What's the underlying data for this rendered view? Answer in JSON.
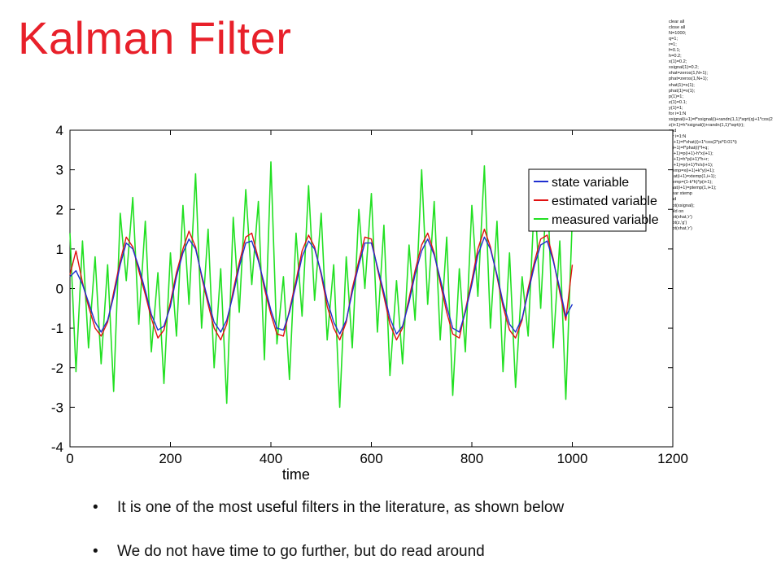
{
  "slide": {
    "title": "Kalman Filter",
    "bullets": [
      "It is one of the most useful filters in the literature, as shown below",
      "We do not have time to go further, but do read around"
    ],
    "code_lines": [
      "clear all",
      "close all",
      "N=1000;",
      "q=1;",
      "r=1;",
      "f=0.1;",
      "h=0.2;",
      "x(1)=0.2;",
      "xsignal(1)=0.2;",
      "xhat=zeros(1,N+1);",
      "phat=zeros(1,N+1);",
      "xhat(1)=x(1);",
      "phat(1)=x(1);",
      "p(1)=1;",
      "z(1)=0.1;",
      "y(1)=1;",
      "for i=1:N",
      "xsignal(i+1)=f*xsignal(i)+randn(1,1)*sqrt(q)+1*cos(2",
      "z(i+1)=h*xsignal(i)+randn(1,1)*sqrt(r);",
      "end",
      "for i=1:N",
      "x(i+1)=f*xhat(i)+1*cos(2*pi*0.01*i)",
      "p(i+1)=f*phat(i)*f+q;",
      "y(i+1)=p(i+1)-h*x(i+1);",
      "s(i+1)=h*p(i+1)*h+r;",
      "k(i+1)=p(i+1)*h/s(i+1);",
      "xtemp=x(i+1)+k*y(i+1);",
      "xhat(i+1)=xtemp(1,i+1);",
      "ptemp=(1-k*h)*p(i+1);",
      "phat(i+1)=ptemp(1,i+1);",
      "clear xtemp",
      "end",
      "plot(xsignal);",
      "hold on",
      "plot(xhat,'r')",
      "plot(z,'g')",
      "plot(xhat,'r')"
    ]
  },
  "colors": {
    "title": "#e8202a",
    "state": "#1f2fd0",
    "estimated": "#e01010",
    "measured": "#22e022"
  },
  "chart_data": {
    "type": "line",
    "xlabel": "time",
    "ylabel": "",
    "xlim": [
      0,
      1200
    ],
    "ylim": [
      -4,
      4
    ],
    "xticks": [
      0,
      200,
      400,
      600,
      800,
      1000,
      1200
    ],
    "yticks": [
      -4,
      -3,
      -2,
      -1,
      0,
      1,
      2,
      3,
      4
    ],
    "grid": false,
    "legend_position": "top-right",
    "x": [
      0,
      12,
      25,
      37,
      50,
      62,
      75,
      87,
      100,
      112,
      125,
      137,
      150,
      162,
      175,
      187,
      200,
      212,
      225,
      237,
      250,
      262,
      275,
      287,
      300,
      312,
      325,
      337,
      350,
      362,
      375,
      387,
      400,
      412,
      425,
      437,
      450,
      462,
      475,
      487,
      500,
      512,
      525,
      537,
      550,
      562,
      575,
      587,
      600,
      612,
      625,
      637,
      650,
      662,
      675,
      687,
      700,
      712,
      725,
      737,
      750,
      762,
      775,
      787,
      800,
      812,
      825,
      837,
      850,
      862,
      875,
      887,
      900,
      912,
      925,
      937,
      950,
      962,
      975,
      987,
      1000
    ],
    "series": [
      {
        "name": "state variable",
        "color": "#1f2fd0",
        "values": [
          0.3,
          0.45,
          0.1,
          -0.35,
          -0.85,
          -1.1,
          -0.8,
          -0.2,
          0.6,
          1.15,
          1.0,
          0.55,
          -0.05,
          -0.65,
          -1.05,
          -0.95,
          -0.45,
          0.3,
          0.9,
          1.25,
          1.0,
          0.35,
          -0.3,
          -0.85,
          -1.1,
          -0.8,
          -0.15,
          0.55,
          1.15,
          1.2,
          0.7,
          0.1,
          -0.55,
          -1.0,
          -1.05,
          -0.6,
          0.1,
          0.8,
          1.2,
          1.0,
          0.4,
          -0.3,
          -0.85,
          -1.15,
          -0.8,
          -0.1,
          0.6,
          1.15,
          1.15,
          0.55,
          -0.1,
          -0.75,
          -1.15,
          -0.95,
          -0.35,
          0.35,
          0.95,
          1.25,
          0.85,
          0.25,
          -0.45,
          -1.0,
          -1.1,
          -0.6,
          0.1,
          0.85,
          1.3,
          1.0,
          0.35,
          -0.35,
          -0.9,
          -1.1,
          -0.75,
          -0.1,
          0.6,
          1.1,
          1.2,
          0.7,
          0.0,
          -0.7,
          -0.4
        ]
      },
      {
        "name": "estimated variable",
        "color": "#e01010",
        "values": [
          0.35,
          0.95,
          0.15,
          -0.45,
          -1.0,
          -1.2,
          -0.85,
          -0.1,
          0.7,
          1.3,
          1.05,
          0.45,
          -0.15,
          -0.75,
          -1.25,
          -1.05,
          -0.35,
          0.4,
          1.0,
          1.45,
          1.05,
          0.3,
          -0.4,
          -1.0,
          -1.3,
          -0.9,
          -0.05,
          0.65,
          1.3,
          1.4,
          0.75,
          0.0,
          -0.65,
          -1.15,
          -1.2,
          -0.55,
          0.2,
          0.95,
          1.35,
          1.05,
          0.35,
          -0.45,
          -1.0,
          -1.3,
          -0.85,
          0.0,
          0.7,
          1.3,
          1.25,
          0.5,
          -0.2,
          -0.9,
          -1.3,
          -1.0,
          -0.25,
          0.45,
          1.1,
          1.4,
          0.9,
          0.15,
          -0.6,
          -1.15,
          -1.25,
          -0.55,
          0.2,
          1.0,
          1.5,
          1.05,
          0.3,
          -0.45,
          -1.05,
          -1.25,
          -0.8,
          0.0,
          0.7,
          1.25,
          1.35,
          0.75,
          -0.1,
          -0.8,
          0.6
        ]
      },
      {
        "name": "measured variable",
        "color": "#22e022",
        "values": [
          1.4,
          -2.1,
          1.2,
          -1.5,
          0.8,
          -1.9,
          0.6,
          -2.6,
          1.9,
          0.2,
          2.3,
          -0.9,
          1.7,
          -1.6,
          0.4,
          -2.4,
          0.9,
          -1.2,
          2.1,
          -0.4,
          2.9,
          -1.0,
          1.5,
          -2.0,
          0.5,
          -2.9,
          1.8,
          -0.6,
          2.5,
          0.1,
          2.2,
          -1.8,
          3.2,
          -1.4,
          0.3,
          -2.3,
          1.4,
          -0.7,
          2.6,
          -0.3,
          1.9,
          -1.3,
          0.6,
          -3.0,
          0.8,
          -1.5,
          2.0,
          0.0,
          2.4,
          -1.1,
          1.6,
          -2.2,
          0.2,
          -1.9,
          1.1,
          -0.8,
          3.0,
          -0.4,
          2.2,
          -1.3,
          1.3,
          -2.7,
          0.5,
          -1.6,
          2.1,
          -0.2,
          3.1,
          -1.0,
          1.7,
          -2.1,
          0.9,
          -2.5,
          0.3,
          -1.2,
          2.4,
          -0.5,
          2.8,
          -1.5,
          1.2,
          -2.8,
          1.8
        ]
      }
    ]
  }
}
